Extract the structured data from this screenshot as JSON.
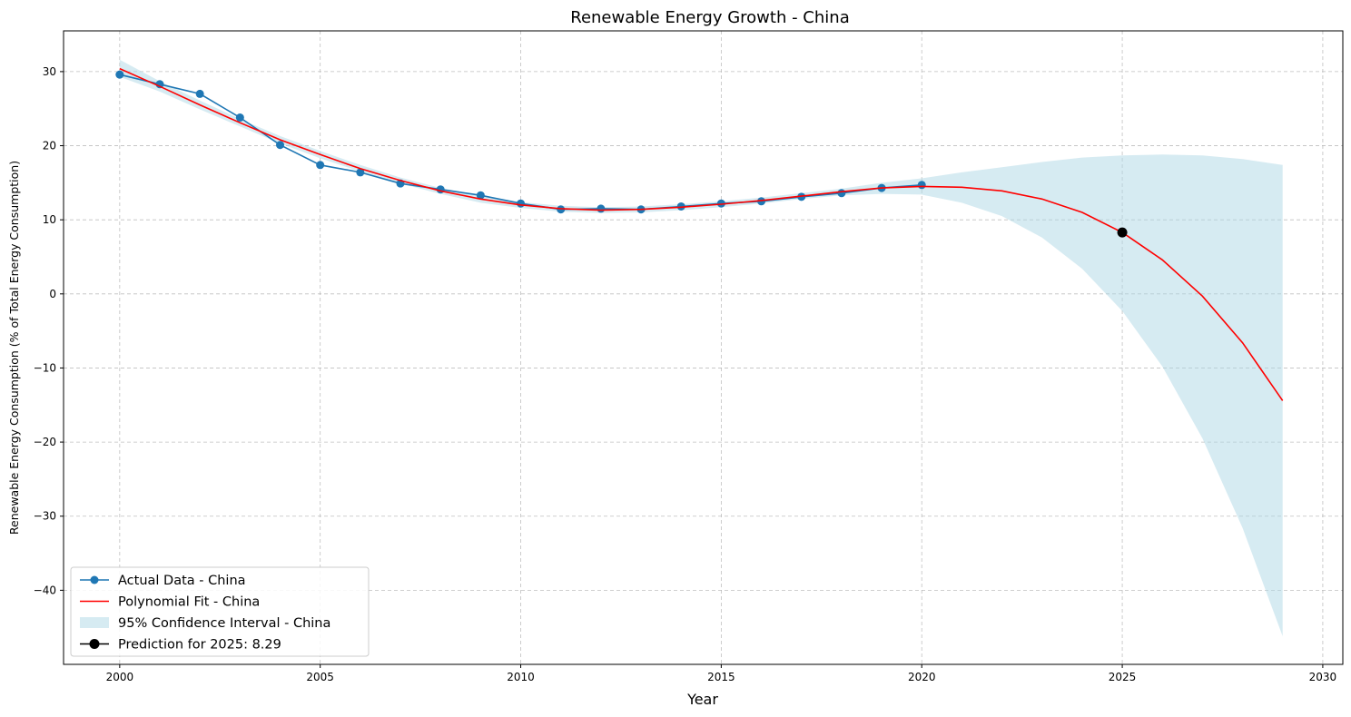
{
  "chart_data": {
    "type": "line",
    "title": "Renewable Energy Growth - China",
    "xlabel": "Year",
    "ylabel": "Renewable Energy Consumption (% of Total Energy Consumption)",
    "xlim": [
      1998.6,
      2030.5
    ],
    "ylim": [
      -50,
      35.5
    ],
    "x_ticks": [
      2000,
      2005,
      2010,
      2015,
      2020,
      2025,
      2030
    ],
    "y_ticks": [
      30,
      20,
      10,
      0,
      -10,
      -20,
      -30,
      -40
    ],
    "grid": true,
    "legend_position": "lower-left",
    "series": [
      {
        "name": "Actual Data - China",
        "kind": "line-markers",
        "color": "#1f77b4",
        "x": [
          2000,
          2001,
          2002,
          2003,
          2004,
          2005,
          2006,
          2007,
          2008,
          2009,
          2010,
          2011,
          2012,
          2013,
          2014,
          2015,
          2016,
          2017,
          2018,
          2019,
          2020
        ],
        "y": [
          29.6,
          28.3,
          27.0,
          23.8,
          20.1,
          17.4,
          16.4,
          14.9,
          14.1,
          13.3,
          12.2,
          11.4,
          11.5,
          11.4,
          11.8,
          12.2,
          12.5,
          13.1,
          13.6,
          14.3,
          14.7
        ]
      },
      {
        "name": "Polynomial Fit - China",
        "kind": "line",
        "color": "#ff0000",
        "x": [
          2000,
          2001,
          2002,
          2003,
          2004,
          2005,
          2006,
          2007,
          2008,
          2009,
          2010,
          2011,
          2012,
          2013,
          2014,
          2015,
          2016,
          2017,
          2018,
          2019,
          2020,
          2021,
          2022,
          2023,
          2024,
          2025,
          2026,
          2027,
          2028,
          2029
        ],
        "y": [
          30.4,
          28.0,
          25.5,
          23.1,
          20.8,
          18.8,
          16.9,
          15.3,
          13.9,
          12.8,
          12.0,
          11.5,
          11.3,
          11.4,
          11.7,
          12.1,
          12.6,
          13.2,
          13.8,
          14.3,
          14.5,
          14.4,
          13.9,
          12.8,
          11.0,
          8.3,
          4.6,
          -0.3,
          -6.6,
          -14.4
        ]
      },
      {
        "name": "95% Confidence Interval - China",
        "kind": "band",
        "color": "#add8e6",
        "x": [
          2000,
          2001,
          2002,
          2003,
          2004,
          2005,
          2006,
          2007,
          2008,
          2009,
          2010,
          2011,
          2012,
          2013,
          2014,
          2015,
          2016,
          2017,
          2018,
          2019,
          2020,
          2021,
          2022,
          2023,
          2024,
          2025,
          2026,
          2027,
          2028,
          2029
        ],
        "lower": [
          29.3,
          27.3,
          24.9,
          22.6,
          20.3,
          18.3,
          16.5,
          14.9,
          13.5,
          12.3,
          11.6,
          11.1,
          10.9,
          11.0,
          11.3,
          11.7,
          12.2,
          12.8,
          13.3,
          13.5,
          13.4,
          12.3,
          10.5,
          7.6,
          3.4,
          -2.3,
          -9.8,
          -19.5,
          -31.6,
          -46.2
        ],
        "upper": [
          31.6,
          28.7,
          26.1,
          23.6,
          21.3,
          19.3,
          17.4,
          15.7,
          14.3,
          13.3,
          12.4,
          11.9,
          11.7,
          11.8,
          12.1,
          12.5,
          13.0,
          13.6,
          14.2,
          15.0,
          15.6,
          16.4,
          17.1,
          17.8,
          18.4,
          18.7,
          18.8,
          18.7,
          18.2,
          17.4
        ]
      },
      {
        "name": "Prediction for 2025: 8.29",
        "kind": "point",
        "color": "#000000",
        "x": [
          2025
        ],
        "y": [
          8.29
        ]
      }
    ]
  }
}
